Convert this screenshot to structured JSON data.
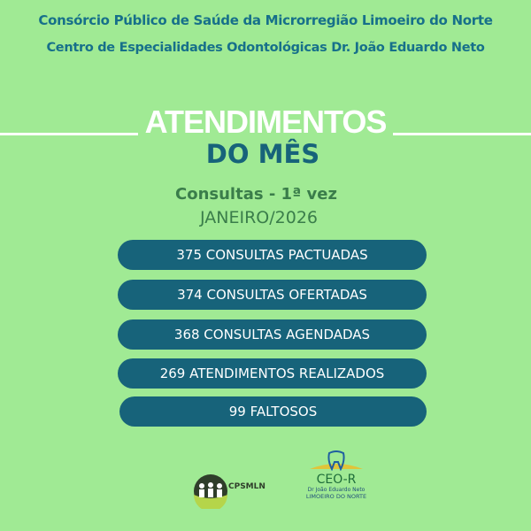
{
  "header": {
    "line1": "Consórcio Público de Saúde da Microrregião Limoeiro do Norte",
    "line2": "Centro de Especialidades Odontológicas Dr. João Eduardo Neto"
  },
  "title": {
    "line1": "ATENDIMENTOS",
    "line2": "DO MÊS"
  },
  "subtitle": {
    "category": "Consultas - 1ª vez",
    "period": "JANEIRO/2026"
  },
  "stats": [
    {
      "label": "375 CONSULTAS PACTUADAS"
    },
    {
      "label": "374 CONSULTAS OFERTADAS"
    },
    {
      "label": "368 CONSULTAS AGENDADAS"
    },
    {
      "label": "269 ATENDIMENTOS REALIZADOS"
    },
    {
      "label": "99 FALTOSOS"
    }
  ],
  "logos": {
    "cpsmln": {
      "name": "CPSMLN"
    },
    "ceo": {
      "name": "CEO-R",
      "line1": "Dr João Eduardo Neto",
      "line2": "LIMOEIRO DO NORTE"
    }
  },
  "colors": {
    "background": "#a0ea94",
    "accent": "#17637a",
    "subtitle": "#3a7d4a"
  }
}
